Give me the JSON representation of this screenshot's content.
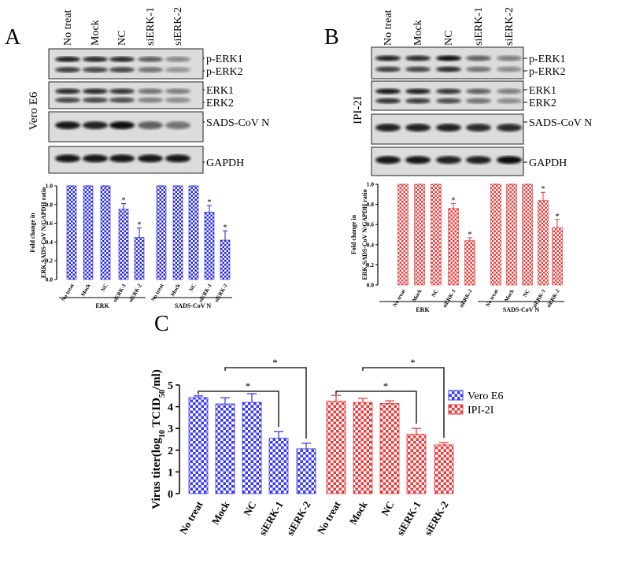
{
  "panels": [
    {
      "letter": "A",
      "cell_line": "Vero E6",
      "lanes": [
        "No treat",
        "Mock",
        "NC",
        "siERK-1",
        "siERK-2"
      ],
      "blot_labels": [
        "p-ERK1",
        "p-ERK2",
        "ERK1",
        "ERK2",
        "SADS-CoV N",
        "GAPDH"
      ]
    },
    {
      "letter": "B",
      "cell_line": "IPI-2I",
      "lanes": [
        "No treat",
        "Mock",
        "NC",
        "siERK-1",
        "siERK-2"
      ],
      "blot_labels": [
        "p-ERK1",
        "p-ERK2",
        "ERK1",
        "ERK2",
        "SADS-CoV N",
        "GAPDH"
      ]
    }
  ],
  "panel_c": {
    "letter": "C"
  },
  "chart_data": [
    {
      "type": "bar",
      "y_label": [
        "Fold change in",
        "ERK,SADS-CoV N/GAPDH ratio"
      ],
      "categories": [
        "No treat",
        "Mock",
        "NC",
        "siERK-1",
        "siERK-2",
        "No treat",
        "Mock",
        "NC",
        "siERK-1",
        "siERK-2"
      ],
      "groups": [
        "ERK",
        "SADS-CoV N"
      ],
      "values": [
        1,
        1,
        1,
        0.75,
        0.45,
        1,
        1,
        1,
        0.72,
        0.42
      ],
      "errors": [
        0,
        0,
        0,
        0.06,
        0.1,
        0,
        0,
        0,
        0.07,
        0.1
      ],
      "annotations": [
        null,
        null,
        null,
        "*",
        "*",
        null,
        null,
        null,
        "*",
        "*"
      ],
      "color": "#2323d8",
      "ylim": [
        0,
        1
      ],
      "yticks": [
        {
          "value": 0,
          "label": "0.0"
        },
        0.2,
        0.4,
        0.6,
        0.8,
        {
          "value": 1,
          "label": "1.0"
        }
      ]
    },
    {
      "type": "bar",
      "y_label": [
        "Fold change in",
        "ERK,SADS-CoV N/GAPDH ratio"
      ],
      "categories": [
        "No treat",
        "Mock",
        "NC",
        "siERK-1",
        "siERK-2",
        "No treat",
        "Mock",
        "NC",
        "siERK-1",
        "siERK-2"
      ],
      "groups": [
        "ERK",
        "SADS-CoV N"
      ],
      "values": [
        1,
        1,
        1,
        0.76,
        0.44,
        1,
        1,
        1,
        0.84,
        0.57
      ],
      "errors": [
        0,
        0,
        0,
        0.05,
        0.03,
        0,
        0,
        0,
        0.08,
        0.08
      ],
      "annotations": [
        null,
        null,
        null,
        "*",
        "*",
        null,
        null,
        null,
        "*",
        "*"
      ],
      "color": "#e63a3a",
      "ylim": [
        0,
        1
      ],
      "yticks": [
        {
          "value": 0,
          "label": "0.0"
        },
        0.2,
        0.4,
        0.6,
        0.8,
        {
          "value": 1,
          "label": "1.0"
        }
      ]
    },
    {
      "type": "grouped_bar",
      "y_label": [
        "Virus titer(log",
        "10",
        " TCID",
        "50",
        "/ml)"
      ],
      "categories": [
        "No treat",
        "Mock",
        "NC",
        "siERK-1",
        "siERK-2"
      ],
      "series": [
        {
          "name": "Vero E6",
          "color": "#3a3af0",
          "values": [
            4.42,
            4.13,
            4.2,
            2.55,
            2.07
          ],
          "errors": [
            0.08,
            0.28,
            0.4,
            0.3,
            0.25
          ]
        },
        {
          "name": "IPI-2I",
          "color": "#e83a3a",
          "values": [
            4.25,
            4.2,
            4.15,
            2.73,
            2.25
          ],
          "errors": [
            0.27,
            0.18,
            0.12,
            0.27,
            0.1
          ]
        }
      ],
      "significance_label": "*",
      "ylim": [
        0,
        5
      ],
      "yticks": [
        0,
        1,
        2,
        3,
        4,
        5
      ]
    }
  ]
}
